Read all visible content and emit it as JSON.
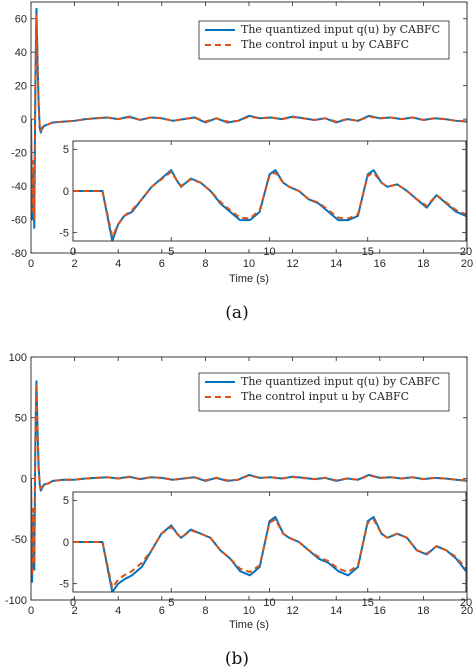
{
  "figure": {
    "panels": [
      {
        "caption": "(a)",
        "xlabel": "Time (s)",
        "legend": [
          {
            "label": "The quantized input q(u) by CABFC",
            "color": "#0072bd",
            "style": "solid"
          },
          {
            "label": "The control input u by CABFC",
            "color": "#d95319",
            "style": "dashed"
          }
        ]
      },
      {
        "caption": "(b)",
        "xlabel": "Time (s)",
        "legend": [
          {
            "label": "The quantized input q(u) by CABFC",
            "color": "#0072bd",
            "style": "solid"
          },
          {
            "label": "The control input u by CABFC",
            "color": "#d95319",
            "style": "dashed"
          }
        ]
      }
    ]
  },
  "chart_data": [
    {
      "type": "line",
      "xlabel": "Time (s)",
      "ylabel": "",
      "xlim": [
        0,
        20
      ],
      "ylim": [
        -80,
        70
      ],
      "xticks": [
        0,
        2,
        4,
        6,
        8,
        10,
        12,
        14,
        16,
        18,
        20
      ],
      "yticks": [
        -80,
        -60,
        -40,
        -20,
        0,
        20,
        40,
        60
      ],
      "grid": false,
      "legend_position": "top-right",
      "series": [
        {
          "name": "The quantized input q(u) by CABFC",
          "color": "#0072bd",
          "style": "solid",
          "x": [
            0,
            0.05,
            0.1,
            0.15,
            0.2,
            0.25,
            0.3,
            0.35,
            0.4,
            0.45,
            0.5,
            0.6,
            0.8,
            1.0,
            1.5,
            2.0,
            2.5,
            3.0,
            3.5,
            4.0,
            4.5,
            5.0,
            5.5,
            6.0,
            6.5,
            7.0,
            7.5,
            8.0,
            8.5,
            9.0,
            9.5,
            10.0,
            10.5,
            11.0,
            11.5,
            12.0,
            12.5,
            13.0,
            13.5,
            14.0,
            14.5,
            15.0,
            15.5,
            16.0,
            16.5,
            17.0,
            17.5,
            18.0,
            18.5,
            19.0,
            19.5,
            20.0
          ],
          "y": [
            0,
            -60,
            -30,
            -65,
            20,
            66,
            35,
            10,
            -5,
            -8,
            -6,
            -4,
            -3,
            -2,
            -1.5,
            -1,
            0,
            0.5,
            1,
            0,
            1.5,
            -0.5,
            1,
            0.5,
            -1,
            0,
            1,
            -2,
            0.5,
            -2,
            -1,
            2,
            0.5,
            1,
            0,
            1.5,
            0.5,
            -0.5,
            0.5,
            -2,
            0,
            -1,
            2,
            0.5,
            1,
            0,
            1,
            -0.5,
            0.5,
            0,
            -1,
            -1.5
          ]
        },
        {
          "name": "The control input u by CABFC",
          "color": "#d95319",
          "style": "dashed",
          "x": [
            0,
            0.05,
            0.1,
            0.15,
            0.2,
            0.25,
            0.3,
            0.35,
            0.4,
            0.45,
            0.5,
            0.6,
            0.8,
            1.0,
            1.5,
            2.0,
            2.5,
            3.0,
            3.5,
            4.0,
            4.5,
            5.0,
            5.5,
            6.0,
            6.5,
            7.0,
            7.5,
            8.0,
            8.5,
            9.0,
            9.5,
            10.0,
            10.5,
            11.0,
            11.5,
            12.0,
            12.5,
            13.0,
            13.5,
            14.0,
            14.5,
            15.0,
            15.5,
            16.0,
            16.5,
            17.0,
            17.5,
            18.0,
            18.5,
            19.0,
            19.5,
            20.0
          ],
          "y": [
            0,
            -55,
            -25,
            -60,
            25,
            62,
            32,
            8,
            -4,
            -7,
            -5,
            -4,
            -3,
            -2,
            -1.5,
            -1,
            0,
            0.5,
            1,
            0,
            1.2,
            -0.4,
            1,
            0.5,
            -1,
            0,
            1,
            -1.5,
            0.5,
            -1.5,
            -1,
            1.5,
            0.5,
            1,
            0,
            1.2,
            0.5,
            -0.5,
            0.5,
            -1.5,
            0,
            -1,
            1.5,
            0.5,
            1,
            0,
            1,
            -0.5,
            0.5,
            0,
            -1,
            -1.2
          ]
        }
      ],
      "inset": {
        "xlim": [
          0,
          20
        ],
        "ylim": [
          -6,
          6
        ],
        "xticks": [
          0,
          5,
          10,
          15,
          20
        ],
        "yticks": [
          -5,
          0,
          5
        ],
        "series": [
          {
            "name": "The quantized input q(u) by CABFC",
            "color": "#0072bd",
            "style": "solid",
            "x": [
              0,
              1.5,
              2.0,
              2.3,
              2.6,
              3.0,
              3.5,
              4.0,
              4.5,
              5.0,
              5.3,
              5.5,
              6.0,
              6.5,
              7.0,
              7.5,
              8.0,
              8.5,
              9.0,
              9.5,
              10.0,
              10.3,
              10.7,
              11.0,
              11.5,
              12.0,
              12.5,
              13.0,
              13.5,
              14.0,
              14.5,
              15.0,
              15.3,
              15.7,
              16.0,
              16.5,
              17.0,
              17.5,
              18.0,
              18.5,
              19.0,
              19.5,
              20.0
            ],
            "y": [
              0,
              0,
              -6,
              -4,
              -3,
              -2.5,
              -1,
              0.5,
              1.5,
              2.5,
              1.2,
              0.5,
              1.5,
              1,
              0,
              -1.5,
              -2.5,
              -3.5,
              -3.5,
              -2.5,
              2,
              2.5,
              1,
              0.5,
              0,
              -1,
              -1.5,
              -2.5,
              -3.5,
              -3.5,
              -3,
              2,
              2.5,
              1,
              0.5,
              0.8,
              0,
              -1,
              -2,
              -0.5,
              -1.5,
              -2.5,
              -3
            ]
          },
          {
            "name": "The control input u by CABFC",
            "color": "#d95319",
            "style": "dashed",
            "x": [
              0,
              1.5,
              2.0,
              2.3,
              2.6,
              3.0,
              3.5,
              4.0,
              4.5,
              5.0,
              5.3,
              5.5,
              6.0,
              6.5,
              7.0,
              7.5,
              8.0,
              8.5,
              9.0,
              9.5,
              10.0,
              10.3,
              10.7,
              11.0,
              11.5,
              12.0,
              12.5,
              13.0,
              13.5,
              14.0,
              14.5,
              15.0,
              15.3,
              15.7,
              16.0,
              16.5,
              17.0,
              17.5,
              18.0,
              18.5,
              19.0,
              19.5,
              20.0
            ],
            "y": [
              0,
              0,
              -5.5,
              -4,
              -3,
              -2.3,
              -1,
              0.5,
              1.4,
              2.3,
              1.2,
              0.6,
              1.4,
              1,
              0,
              -1.3,
              -2.3,
              -3.2,
              -3.3,
              -2.3,
              1.8,
              2.2,
              1,
              0.5,
              0,
              -1,
              -1.4,
              -2.3,
              -3.2,
              -3.3,
              -2.8,
              1.8,
              2.2,
              1,
              0.5,
              0.8,
              0,
              -1,
              -1.8,
              -0.5,
              -1.4,
              -2.3,
              -2.8
            ]
          }
        ]
      }
    },
    {
      "type": "line",
      "xlabel": "Time (s)",
      "ylabel": "",
      "xlim": [
        0,
        20
      ],
      "ylim": [
        -100,
        100
      ],
      "xticks": [
        0,
        2,
        4,
        6,
        8,
        10,
        12,
        14,
        16,
        18,
        20
      ],
      "yticks": [
        -100,
        -50,
        0,
        50,
        100
      ],
      "grid": false,
      "legend_position": "top-right",
      "series": [
        {
          "name": "The quantized input q(u) by CABFC",
          "color": "#0072bd",
          "style": "solid",
          "x": [
            0,
            0.05,
            0.1,
            0.15,
            0.2,
            0.25,
            0.3,
            0.35,
            0.4,
            0.45,
            0.5,
            0.6,
            0.8,
            1.0,
            1.5,
            2.0,
            2.5,
            3.0,
            3.5,
            4.0,
            4.5,
            5.0,
            5.5,
            6.0,
            6.5,
            7.0,
            7.5,
            8.0,
            8.5,
            9.0,
            9.5,
            10.0,
            10.5,
            11.0,
            11.5,
            12.0,
            12.5,
            13.0,
            13.5,
            14.0,
            14.5,
            15.0,
            15.5,
            16.0,
            16.5,
            17.0,
            17.5,
            18.0,
            18.5,
            19.0,
            19.5,
            20.0
          ],
          "y": [
            0,
            -85,
            -30,
            -75,
            30,
            80,
            40,
            10,
            -5,
            -10,
            -8,
            -5,
            -4,
            -2,
            -1,
            -1,
            0,
            0.5,
            1,
            0,
            1.5,
            -0.5,
            1,
            0.5,
            -1,
            0,
            1,
            -2,
            0.5,
            -2,
            -1,
            3,
            0.5,
            1,
            0,
            1.5,
            0.5,
            -0.5,
            0.5,
            -2,
            0,
            -1,
            3,
            0.5,
            1,
            0,
            1,
            -0.5,
            0.5,
            0,
            -1,
            -2
          ]
        },
        {
          "name": "The control input u by CABFC",
          "color": "#d95319",
          "style": "dashed",
          "x": [
            0,
            0.05,
            0.1,
            0.15,
            0.2,
            0.25,
            0.3,
            0.35,
            0.4,
            0.45,
            0.5,
            0.6,
            0.8,
            1.0,
            1.5,
            2.0,
            2.5,
            3.0,
            3.5,
            4.0,
            4.5,
            5.0,
            5.5,
            6.0,
            6.5,
            7.0,
            7.5,
            8.0,
            8.5,
            9.0,
            9.5,
            10.0,
            10.5,
            11.0,
            11.5,
            12.0,
            12.5,
            13.0,
            13.5,
            14.0,
            14.5,
            15.0,
            15.5,
            16.0,
            16.5,
            17.0,
            17.5,
            18.0,
            18.5,
            19.0,
            19.5,
            20.0
          ],
          "y": [
            0,
            -80,
            -25,
            -70,
            35,
            78,
            38,
            8,
            -4,
            -8,
            -7,
            -5,
            -4,
            -2,
            -1,
            -1,
            0,
            0.5,
            1,
            0,
            1.2,
            -0.4,
            1,
            0.5,
            -1,
            0,
            1,
            -1.5,
            0.5,
            -1.5,
            -1,
            2.5,
            0.5,
            1,
            0,
            1.2,
            0.5,
            -0.5,
            0.5,
            -1.5,
            0,
            -1,
            2.5,
            0.5,
            1,
            0,
            1,
            -0.5,
            0.5,
            0,
            -1,
            -1.5
          ]
        }
      ],
      "inset": {
        "xlim": [
          0,
          20
        ],
        "ylim": [
          -6,
          6
        ],
        "xticks": [
          0,
          5,
          10,
          15,
          20
        ],
        "yticks": [
          -5,
          0,
          5
        ],
        "series": [
          {
            "name": "The quantized input q(u) by CABFC",
            "color": "#0072bd",
            "style": "solid",
            "x": [
              0,
              1.5,
              2.0,
              2.3,
              2.6,
              3.0,
              3.5,
              4.0,
              4.5,
              5.0,
              5.3,
              5.5,
              6.0,
              6.5,
              7.0,
              7.5,
              8.0,
              8.5,
              9.0,
              9.5,
              10.0,
              10.3,
              10.7,
              11.0,
              11.5,
              12.0,
              12.5,
              13.0,
              13.5,
              14.0,
              14.5,
              15.0,
              15.3,
              15.7,
              16.0,
              16.5,
              17.0,
              17.5,
              18.0,
              18.5,
              19.0,
              19.5,
              20.0
            ],
            "y": [
              0,
              0,
              -6,
              -5,
              -4.5,
              -4,
              -3,
              -1,
              1,
              2,
              1,
              0.5,
              1.5,
              1,
              0.5,
              -1,
              -2,
              -3.5,
              -4,
              -3,
              2.5,
              3,
              1,
              0.5,
              0,
              -1,
              -2,
              -2.5,
              -3.5,
              -4,
              -3,
              2.5,
              3,
              1,
              0.5,
              1,
              0.5,
              -1,
              -1.5,
              -0.5,
              -1,
              -2,
              -3.5
            ]
          },
          {
            "name": "The control input u by CABFC",
            "color": "#d95319",
            "style": "dashed",
            "x": [
              0,
              1.5,
              2.0,
              2.3,
              2.6,
              3.0,
              3.5,
              4.0,
              4.5,
              5.0,
              5.3,
              5.5,
              6.0,
              6.5,
              7.0,
              7.5,
              8.0,
              8.5,
              9.0,
              9.5,
              10.0,
              10.3,
              10.7,
              11.0,
              11.5,
              12.0,
              12.5,
              13.0,
              13.5,
              14.0,
              14.5,
              15.0,
              15.3,
              15.7,
              16.0,
              16.5,
              17.0,
              17.5,
              18.0,
              18.5,
              19.0,
              19.5,
              20.0
            ],
            "y": [
              0,
              0,
              -5.5,
              -4.5,
              -4,
              -3.5,
              -2.5,
              -1,
              1,
              1.8,
              1,
              0.5,
              1.4,
              1,
              0.5,
              -1,
              -2,
              -3.2,
              -3.6,
              -2.8,
              2.3,
              2.7,
              1,
              0.5,
              0,
              -1,
              -1.8,
              -2.3,
              -3.2,
              -3.6,
              -2.8,
              2.3,
              2.7,
              1,
              0.5,
              1,
              0.5,
              -1,
              -1.4,
              -0.5,
              -1,
              -1.8,
              -3.2
            ]
          }
        ]
      }
    }
  ]
}
